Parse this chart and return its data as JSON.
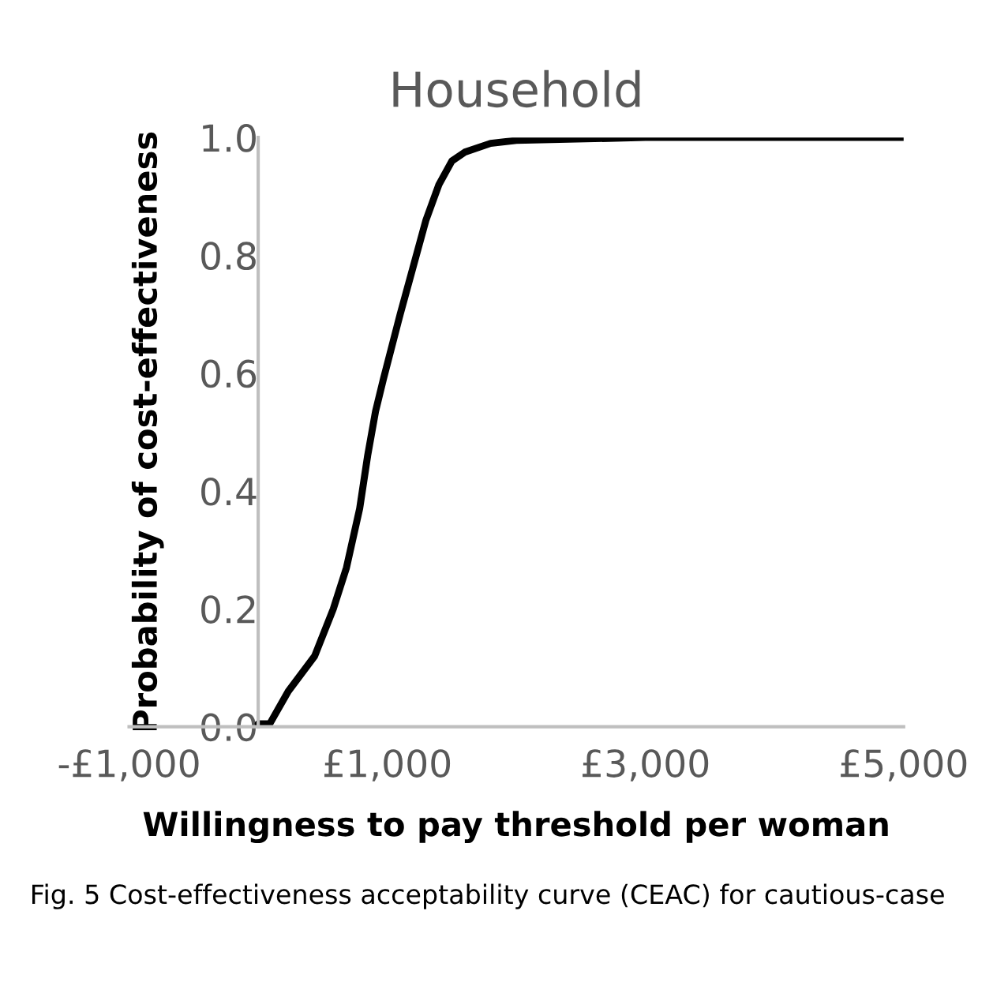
{
  "chart_data": {
    "type": "line",
    "title": "Household",
    "xlabel": "Willingness to pay threshold per woman",
    "ylabel": "Probability of cost-effectiveness",
    "annotations": [
      "Fig. 5 Cost-effectiveness acceptability curve (CEAC) for cautious-case"
    ],
    "x": [
      0,
      90,
      233,
      438,
      582,
      684,
      786,
      848,
      909,
      970,
      1100,
      1200,
      1300,
      1400,
      1500,
      1600,
      1800,
      2000,
      3000,
      5000
    ],
    "series": [
      {
        "color": "#000000",
        "values": [
          0.005,
          0.005,
          0.06,
          0.12,
          0.2,
          0.27,
          0.37,
          0.46,
          0.535,
          0.59,
          0.7,
          0.78,
          0.86,
          0.92,
          0.96,
          0.975,
          0.99,
          0.995,
          1.0,
          1.0
        ]
      }
    ],
    "xlim": [
      -1000,
      5000
    ],
    "xticks": [
      {
        "value": -1000,
        "label": "-£1,000"
      },
      {
        "value": 1000,
        "label": "£1,000"
      },
      {
        "value": 3000,
        "label": "£3,000"
      },
      {
        "value": 5000,
        "label": "£5,000"
      }
    ],
    "ylim": [
      0,
      1.0
    ],
    "yticks": [
      {
        "value": 0,
        "label": "0.0"
      },
      {
        "value": 0.2,
        "label": "0.2"
      },
      {
        "value": 0.4,
        "label": "0.4"
      },
      {
        "value": 0.6,
        "label": "0.6"
      },
      {
        "value": 0.8,
        "label": "0.8"
      },
      {
        "value": 1.0,
        "label": "1.0"
      }
    ],
    "grid": false,
    "legend": false,
    "marker": "none",
    "line_style": "solid"
  }
}
